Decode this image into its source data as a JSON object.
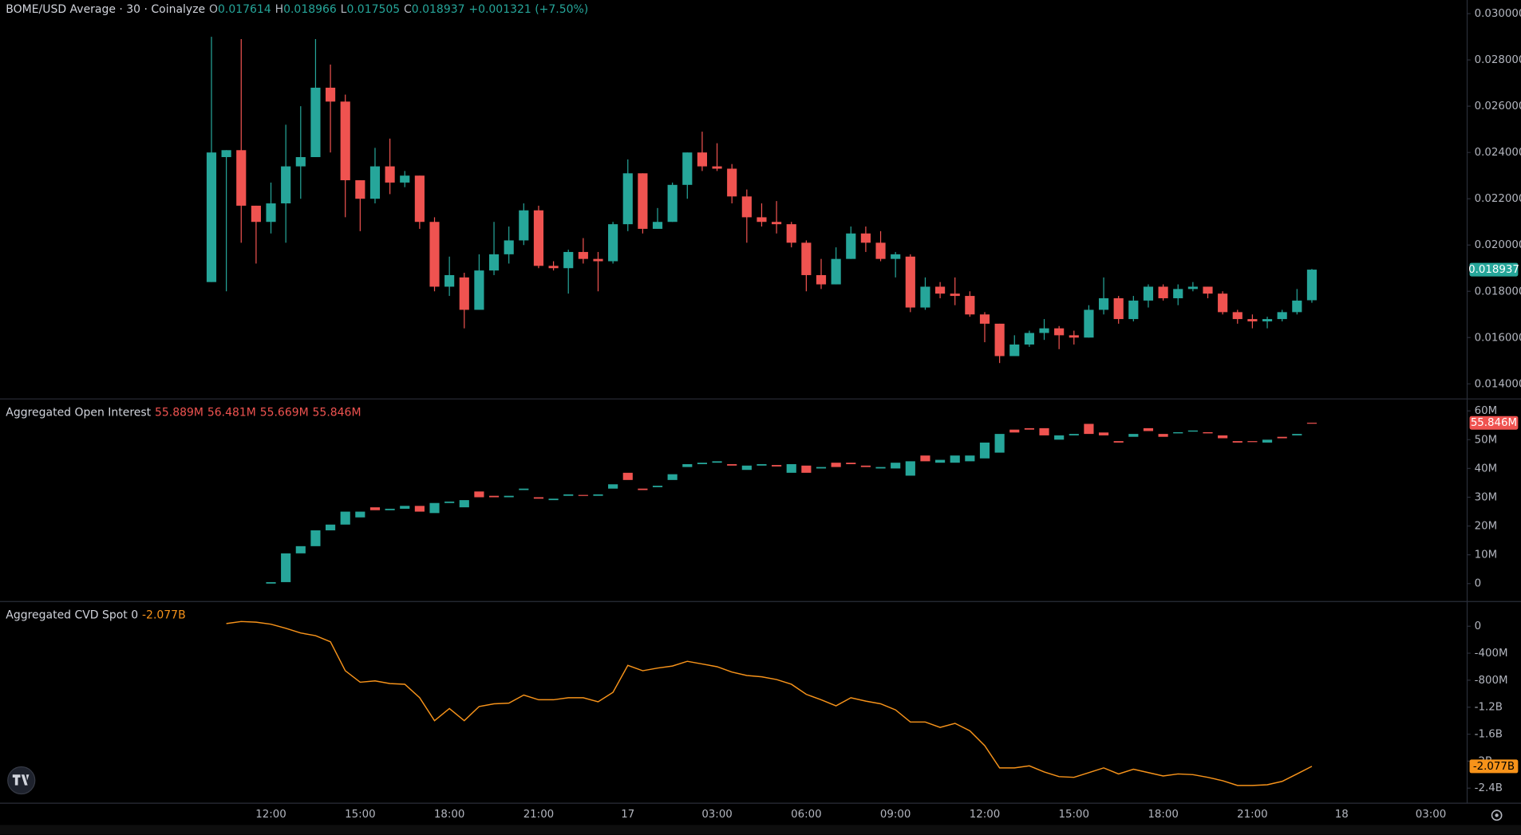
{
  "chart_data": [
    {
      "type": "candlestick",
      "title": "BOME/USD Average · 30 · Coinalyze",
      "legend": {
        "keys": [
          "O",
          "H",
          "L",
          "C"
        ],
        "values": [
          "0.017614",
          "0.018966",
          "0.017505",
          "0.018937"
        ],
        "change": "+0.001321 (+7.50%)"
      },
      "last_label": "0.018937",
      "up_color": "#26a69a",
      "down_color": "#ef5350",
      "grid": false,
      "ylim": [
        0.01337,
        0.03059
      ],
      "yticks": [
        {
          "value": 0.014,
          "label": "0.014000"
        },
        {
          "value": 0.016,
          "label": "0.016000"
        },
        {
          "value": 0.018,
          "label": "0.018000"
        },
        {
          "value": 0.02,
          "label": "0.020000"
        },
        {
          "value": 0.022,
          "label": "0.022000"
        },
        {
          "value": 0.024,
          "label": "0.024000"
        },
        {
          "value": 0.026,
          "label": "0.026000"
        },
        {
          "value": 0.028,
          "label": "0.028000"
        },
        {
          "value": 0.03,
          "label": "0.030000"
        }
      ],
      "open": [
        0.0184,
        0.0238,
        0.0241,
        0.0217,
        0.021,
        0.0218,
        0.0234,
        0.0238,
        0.0268,
        0.0262,
        0.0228,
        0.022,
        0.0234,
        0.0227,
        0.023,
        0.021,
        0.0182,
        0.0186,
        0.0172,
        0.0189,
        0.0196,
        0.0202,
        0.0215,
        0.0191,
        0.019,
        0.0197,
        0.0194,
        0.0193,
        0.0209,
        0.0231,
        0.0207,
        0.021,
        0.0226,
        0.024,
        0.0234,
        0.0233,
        0.0221,
        0.0212,
        0.021,
        0.0209,
        0.0201,
        0.0187,
        0.0183,
        0.0194,
        0.0205,
        0.0201,
        0.0194,
        0.0195,
        0.0173,
        0.0182,
        0.0179,
        0.0178,
        0.017,
        0.0166,
        0.0152,
        0.0157,
        0.0162,
        0.0164,
        0.0161,
        0.016,
        0.0172,
        0.0177,
        0.0168,
        0.0176,
        0.0182,
        0.0177,
        0.0181,
        0.0182,
        0.0179,
        0.0171,
        0.0168,
        0.0167,
        0.0168,
        0.0171,
        0.017614,
        null,
        null,
        null,
        null,
        null,
        null,
        null,
        null
      ],
      "high": [
        0.029,
        0.0241,
        0.0289,
        0.0217,
        0.0227,
        0.0252,
        0.026,
        0.0289,
        0.0278,
        0.0265,
        0.0228,
        0.0242,
        0.0246,
        0.0232,
        0.023,
        0.0212,
        0.0195,
        0.0188,
        0.0196,
        0.021,
        0.0208,
        0.0218,
        0.0217,
        0.0193,
        0.0198,
        0.0203,
        0.0197,
        0.021,
        0.0237,
        0.0231,
        0.0216,
        0.0227,
        0.024,
        0.0249,
        0.0244,
        0.0235,
        0.0224,
        0.0218,
        0.0219,
        0.021,
        0.0202,
        0.0194,
        0.0199,
        0.0208,
        0.0208,
        0.0206,
        0.0197,
        0.0196,
        0.0186,
        0.0184,
        0.0186,
        0.018,
        0.0171,
        0.0166,
        0.0161,
        0.0163,
        0.0168,
        0.0165,
        0.0163,
        0.0174,
        0.0186,
        0.0178,
        0.0178,
        0.0183,
        0.0183,
        0.0183,
        0.0184,
        0.0182,
        0.018,
        0.0172,
        0.017,
        0.0169,
        0.0172,
        0.0181,
        0.018966,
        null,
        null,
        null,
        null,
        null,
        null,
        null,
        null
      ],
      "low": [
        0.0184,
        0.018,
        0.0201,
        0.0192,
        0.0205,
        0.0201,
        0.022,
        0.0238,
        0.024,
        0.0212,
        0.0206,
        0.0218,
        0.0222,
        0.0225,
        0.0207,
        0.018,
        0.0178,
        0.0164,
        0.0172,
        0.0187,
        0.0192,
        0.02,
        0.019,
        0.0189,
        0.0179,
        0.0192,
        0.018,
        0.0192,
        0.0206,
        0.0205,
        0.0207,
        0.021,
        0.022,
        0.0232,
        0.0232,
        0.0218,
        0.0201,
        0.0208,
        0.0205,
        0.0199,
        0.018,
        0.0181,
        0.0183,
        0.0194,
        0.0197,
        0.0193,
        0.0186,
        0.0171,
        0.0172,
        0.0177,
        0.0174,
        0.0169,
        0.0158,
        0.0149,
        0.0152,
        0.0156,
        0.0159,
        0.0155,
        0.0157,
        0.016,
        0.017,
        0.0166,
        0.0167,
        0.0173,
        0.0176,
        0.0174,
        0.018,
        0.0177,
        0.017,
        0.0166,
        0.0164,
        0.0164,
        0.0167,
        0.017,
        0.017505,
        null,
        null,
        null,
        null,
        null,
        null,
        null,
        null
      ],
      "close": [
        0.024,
        0.0241,
        0.0217,
        0.021,
        0.0218,
        0.0234,
        0.0238,
        0.0268,
        0.0262,
        0.0228,
        0.022,
        0.0234,
        0.0227,
        0.023,
        0.021,
        0.0182,
        0.0187,
        0.0172,
        0.0189,
        0.0196,
        0.0202,
        0.0215,
        0.0191,
        0.019,
        0.0197,
        0.0194,
        0.0193,
        0.0209,
        0.0231,
        0.0207,
        0.021,
        0.0226,
        0.024,
        0.0234,
        0.0233,
        0.0221,
        0.0212,
        0.021,
        0.0209,
        0.0201,
        0.0187,
        0.0183,
        0.0194,
        0.0205,
        0.0201,
        0.0194,
        0.0196,
        0.0173,
        0.0182,
        0.0179,
        0.0178,
        0.017,
        0.0166,
        0.0152,
        0.0157,
        0.0162,
        0.0164,
        0.0161,
        0.016,
        0.0172,
        0.0177,
        0.0168,
        0.0176,
        0.0182,
        0.0177,
        0.0181,
        0.0182,
        0.0179,
        0.0171,
        0.0168,
        0.0167,
        0.0168,
        0.0171,
        0.0176,
        0.018937,
        null,
        null,
        null,
        null,
        null,
        null,
        null,
        null
      ]
    },
    {
      "type": "candlestick",
      "title": "Aggregated Open Interest",
      "legend": {
        "values": [
          "55.889M",
          "56.481M",
          "55.669M",
          "55.846M"
        ]
      },
      "last_label": "55.846M",
      "up_color": "#26a69a",
      "down_color": "#ef5350",
      "grid": false,
      "ylim": [
        -6.07,
        64.0
      ],
      "yticks": [
        0,
        {
          "value": 10,
          "label": "10M"
        },
        {
          "value": 20,
          "label": "20M"
        },
        {
          "value": 30,
          "label": "30M"
        },
        {
          "value": 40,
          "label": "40M"
        },
        {
          "value": 50,
          "label": "50M"
        },
        {
          "value": 60,
          "label": "60M"
        }
      ],
      "open": [
        null,
        null,
        null,
        null,
        0,
        0.5,
        10.5,
        13,
        18.5,
        20.5,
        23,
        26.5,
        25.5,
        26,
        27,
        24.5,
        28,
        26.5,
        32,
        30.5,
        30,
        32.5,
        30,
        29,
        30.5,
        30.8,
        30.5,
        33,
        38.5,
        33,
        33.5,
        36,
        40.5,
        41.5,
        42,
        41.5,
        39.5,
        41,
        41.2,
        38.5,
        41,
        40,
        42,
        42,
        41,
        40,
        40,
        37.5,
        44.5,
        42,
        42,
        42.5,
        43.5,
        45.5,
        53.5,
        54,
        54,
        50,
        51.5,
        55.5,
        52.5,
        49.5,
        51,
        54,
        52,
        52.2,
        52.8,
        52.6,
        51.5,
        49.5,
        49.5,
        49,
        51,
        51.5,
        55.889,
        null,
        null,
        null,
        null,
        null,
        null,
        null,
        null
      ],
      "close": [
        null,
        null,
        null,
        null,
        0.5,
        10.5,
        13,
        18.5,
        20.5,
        25,
        25,
        25.5,
        26,
        27,
        25,
        28,
        28.5,
        29,
        30,
        30,
        30.5,
        33,
        29.5,
        29.5,
        31,
        30.5,
        31,
        34.5,
        36,
        32.5,
        34,
        38,
        41.5,
        42,
        42.5,
        41,
        41,
        41.5,
        40.7,
        41.5,
        38.5,
        40.5,
        40.5,
        41.5,
        40.5,
        40.5,
        42,
        42.5,
        42.5,
        43,
        44.5,
        44.5,
        49,
        52,
        52.5,
        53.5,
        51.5,
        51.5,
        52,
        52,
        51.5,
        49,
        52,
        53,
        51,
        52.6,
        53.2,
        52.2,
        50.5,
        49,
        49.2,
        50,
        50.5,
        52,
        55.846,
        null,
        null,
        null,
        null,
        null,
        null,
        null,
        null
      ]
    },
    {
      "type": "line",
      "title": "Aggregated CVD Spot 0",
      "legend": {
        "values": [
          "-2.077B"
        ]
      },
      "last_label": "-2.077B",
      "color": "#f7931a",
      "grid": false,
      "ylim": [
        -2616,
        359
      ],
      "yticks": [
        0,
        {
          "value": -400,
          "label": "-400M"
        },
        {
          "value": -800,
          "label": "-800M"
        },
        {
          "value": -1200,
          "label": "-1.2B"
        },
        {
          "value": -1600,
          "label": "-1.6B"
        },
        {
          "value": -2000,
          "label": "-2B"
        },
        {
          "value": -2400,
          "label": "-2.4B"
        }
      ],
      "categories": [
        null,
        null,
        null,
        null,
        "12:00",
        null,
        null,
        null,
        null,
        null,
        "15:00",
        null,
        null,
        null,
        null,
        null,
        "18:00",
        null,
        null,
        null,
        null,
        null,
        "21:00",
        null,
        null,
        null,
        null,
        null,
        "17",
        null,
        null,
        null,
        null,
        null,
        "03:00",
        null,
        null,
        null,
        null,
        null,
        "06:00",
        null,
        null,
        null,
        null,
        null,
        "09:00",
        null,
        null,
        null,
        null,
        null,
        "12:00",
        null,
        null,
        null,
        null,
        null,
        "15:00",
        null,
        null,
        null,
        null,
        null,
        "18:00",
        null,
        null,
        null,
        null,
        null,
        "21:00",
        null,
        null,
        null,
        null,
        null,
        "18",
        null,
        null,
        null,
        null,
        null,
        "03:00"
      ],
      "values": [
        null,
        40,
        70,
        60,
        30,
        -30,
        -100,
        -140,
        -230,
        -660,
        -830,
        -810,
        -850,
        -860,
        -1060,
        -1400,
        -1220,
        -1400,
        -1190,
        -1150,
        -1140,
        -1020,
        -1090,
        -1090,
        -1060,
        -1060,
        -1120,
        -980,
        -580,
        -660,
        -620,
        -590,
        -520,
        -560,
        -600,
        -680,
        -730,
        -750,
        -790,
        -860,
        -1010,
        -1090,
        -1180,
        -1060,
        -1110,
        -1150,
        -1240,
        -1420,
        -1420,
        -1500,
        -1440,
        -1550,
        -1770,
        -2100,
        -2100,
        -2070,
        -2160,
        -2230,
        -2240,
        -2170,
        -2100,
        -2190,
        -2120,
        -2170,
        -2220,
        -2190,
        -2200,
        -2240,
        -2290,
        -2360,
        -2360,
        -2350,
        -2300,
        -2190,
        -2077,
        null,
        null,
        null,
        null,
        null,
        null,
        null,
        null
      ]
    }
  ]
}
